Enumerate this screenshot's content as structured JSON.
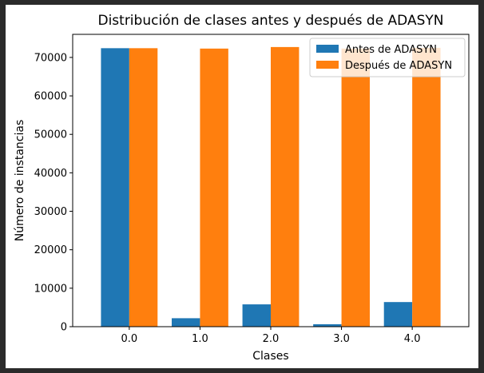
{
  "chart_data": {
    "type": "bar",
    "title": "Distribución de clases antes y después de ADASYN",
    "xlabel": "Clases",
    "ylabel": "Número de instancias",
    "categories": [
      "0.0",
      "1.0",
      "2.0",
      "3.0",
      "4.0"
    ],
    "series": [
      {
        "name": "Antes de ADASYN",
        "values": [
          72400,
          2200,
          5800,
          640,
          6400
        ],
        "color": "#1f77b4"
      },
      {
        "name": "Después de ADASYN",
        "values": [
          72400,
          72300,
          72700,
          72300,
          72500
        ],
        "color": "#ff7f0e"
      }
    ],
    "ylim": [
      0,
      76000
    ],
    "yticks": [
      0,
      10000,
      20000,
      30000,
      40000,
      50000,
      60000,
      70000
    ],
    "ytick_labels": [
      "0",
      "10000",
      "20000",
      "30000",
      "40000",
      "50000",
      "60000",
      "70000"
    ],
    "grid": false,
    "legend_position": "upper right"
  }
}
